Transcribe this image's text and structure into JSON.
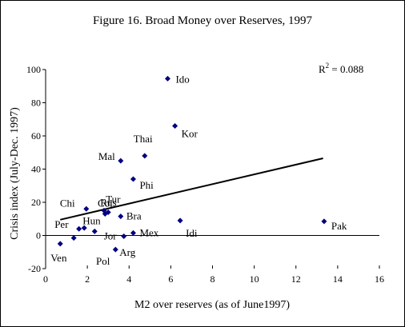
{
  "chart_data": {
    "type": "scatter",
    "title": "Figure 16. Broad Money over Reserves, 1997",
    "xlabel": "M2 over reserves  (as of June1997)",
    "ylabel": "Crisis index (July-Dec. 1997)",
    "xlim": [
      0,
      16
    ],
    "ylim": [
      -20,
      100
    ],
    "xticks": [
      "0",
      "2",
      "4",
      "6",
      "8",
      "10",
      "12",
      "14",
      "16"
    ],
    "yticks": [
      "-20",
      "0",
      "20",
      "40",
      "60",
      "80",
      "100"
    ],
    "grid": false,
    "marker_color": "#000080",
    "r2_label": "R",
    "r2_exp": "2",
    "r2_value": " = 0.088",
    "trendline": {
      "x": [
        0.7,
        13.3
      ],
      "y": [
        9.5,
        46.5
      ]
    },
    "points": [
      {
        "label": "Ido",
        "x": 5.85,
        "y": 94.5
      },
      {
        "label": "Kor",
        "x": 6.2,
        "y": 66
      },
      {
        "label": "Thai",
        "x": 4.75,
        "y": 48
      },
      {
        "label": "Mal",
        "x": 3.6,
        "y": 45
      },
      {
        "label": "Phi",
        "x": 4.2,
        "y": 34
      },
      {
        "label": "Tur",
        "x": 3.0,
        "y": 14
      },
      {
        "label": "Chi",
        "x": 1.95,
        "y": 16
      },
      {
        "label": "Col",
        "x": 2.8,
        "y": 15
      },
      {
        "label": "Rus",
        "x": 2.85,
        "y": 13
      },
      {
        "label": "Bra",
        "x": 3.6,
        "y": 11.5
      },
      {
        "label": "Idi",
        "x": 6.45,
        "y": 9
      },
      {
        "label": "Pak",
        "x": 13.35,
        "y": 8.5
      },
      {
        "label": "Per",
        "x": 1.85,
        "y": 4.5
      },
      {
        "label": "Hun",
        "x": 2.35,
        "y": 2.5
      },
      {
        "label": "",
        "x": 1.6,
        "y": 4
      },
      {
        "label": "Mex",
        "x": 4.2,
        "y": 1.5
      },
      {
        "label": "Jor",
        "x": 3.75,
        "y": -0.5
      },
      {
        "label": "",
        "x": 1.35,
        "y": -1.5
      },
      {
        "label": "Ven",
        "x": 0.7,
        "y": -5
      },
      {
        "label": "Arg",
        "x": 3.35,
        "y": -8.5
      },
      {
        "label": "Pol",
        "x": null,
        "y": null
      }
    ]
  }
}
